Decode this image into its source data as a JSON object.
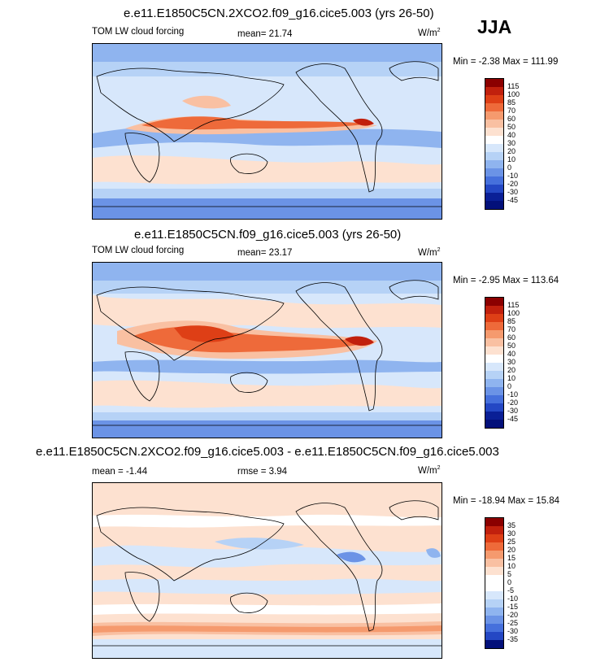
{
  "season": "JJA",
  "panels": [
    {
      "title": "e.e11.E1850C5CN.2XCO2.f09_g16.cice5.003 (yrs 26-50)",
      "left_label": "TOM LW cloud forcing",
      "center_label": "mean=  21.74",
      "units": "W/m",
      "units_sup": "2",
      "minmax": "Min =  -2.38 Max = 111.99",
      "cbar_labels": [
        "115",
        "100",
        "85",
        "70",
        "60",
        "50",
        "40",
        "30",
        "20",
        "10",
        "0",
        "-10",
        "-20",
        "-30",
        "-45"
      ],
      "cbar_colors": [
        "#8b0000",
        "#c1200d",
        "#de3f16",
        "#ee6a3a",
        "#f59a6e",
        "#f9c0a2",
        "#fde1d0",
        "#ffffff",
        "#d7e7fb",
        "#b6d2f6",
        "#8fb4ef",
        "#6b93e6",
        "#4670dc",
        "#2447c4",
        "#0a1f96",
        "#03107a"
      ]
    },
    {
      "title": "e.e11.E1850C5CN.f09_g16.cice5.003 (yrs 26-50)",
      "left_label": "TOM LW cloud forcing",
      "center_label": "mean=  23.17",
      "units": "W/m",
      "units_sup": "2",
      "minmax": "Min =  -2.95 Max = 113.64",
      "cbar_labels": [
        "115",
        "100",
        "85",
        "70",
        "60",
        "50",
        "40",
        "30",
        "20",
        "10",
        "0",
        "-10",
        "-20",
        "-30",
        "-45"
      ],
      "cbar_colors": [
        "#8b0000",
        "#c1200d",
        "#de3f16",
        "#ee6a3a",
        "#f59a6e",
        "#f9c0a2",
        "#fde1d0",
        "#ffffff",
        "#d7e7fb",
        "#b6d2f6",
        "#8fb4ef",
        "#6b93e6",
        "#4670dc",
        "#2447c4",
        "#0a1f96",
        "#03107a"
      ]
    },
    {
      "title": "e.e11.E1850C5CN.2XCO2.f09_g16.cice5.003 - e.e11.E1850C5CN.f09_g16.cice5.003",
      "left_label": "mean =  -1.44",
      "center_label": "rmse =   3.94",
      "units": "W/m",
      "units_sup": "2",
      "minmax": "Min = -18.94 Max =  15.84",
      "cbar_labels": [
        "35",
        "30",
        "25",
        "20",
        "15",
        "10",
        "5",
        "0",
        "-5",
        "-10",
        "-15",
        "-20",
        "-25",
        "-30",
        "-35"
      ],
      "cbar_colors": [
        "#8b0000",
        "#c1200d",
        "#de3f16",
        "#ee6a3a",
        "#f59a6e",
        "#f9c0a2",
        "#fde1d0",
        "#ffffff",
        "#ffffff",
        "#d7e7fb",
        "#b6d2f6",
        "#8fb4ef",
        "#6b93e6",
        "#4670dc",
        "#2447c4",
        "#03107a"
      ]
    }
  ]
}
